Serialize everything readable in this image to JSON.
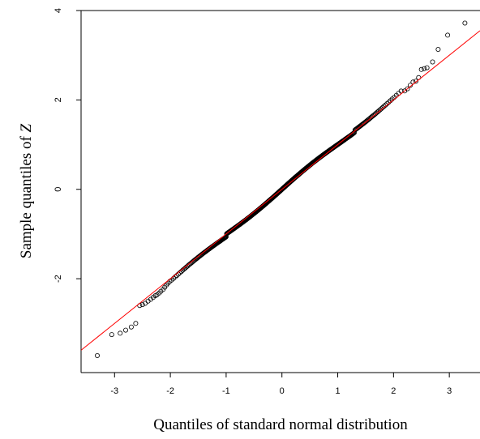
{
  "chart_data": {
    "type": "scatter",
    "title": "",
    "xlabel": "Quantiles of standard normal distribution",
    "ylabel_prefix": "Sample quantiles of ",
    "ylabel_symbol": "Z",
    "xlim": [
      -3.6,
      3.55
    ],
    "ylim": [
      -4.1,
      4.0
    ],
    "x_ticks": [
      -3,
      -2,
      -1,
      0,
      1,
      2,
      3
    ],
    "y_ticks": [
      -2,
      0,
      2,
      4
    ],
    "x_tick_labels": [
      "-3",
      "-2",
      "-1",
      "0",
      "1",
      "2",
      "3"
    ],
    "y_tick_labels": [
      "-2",
      "0",
      "2",
      "4"
    ],
    "grid": false,
    "legend": "none",
    "reference_line": {
      "slope": 1.0,
      "intercept": 0.0,
      "color": "#ff0000"
    },
    "point_color": "#000000",
    "series": [
      {
        "points": [
          [
            -3.31,
            -3.72
          ],
          [
            -3.05,
            -3.25
          ],
          [
            -2.9,
            -3.22
          ],
          [
            -2.8,
            -3.15
          ],
          [
            -2.7,
            -3.08
          ],
          [
            -2.62,
            -3.0
          ],
          [
            -2.55,
            -2.6
          ],
          [
            -2.5,
            -2.58
          ],
          [
            -2.45,
            -2.55
          ],
          [
            -2.4,
            -2.5
          ],
          [
            -2.35,
            -2.46
          ],
          [
            -2.31,
            -2.42
          ],
          [
            -2.27,
            -2.38
          ],
          [
            -2.24,
            -2.36
          ],
          [
            -2.2,
            -2.32
          ],
          [
            -2.17,
            -2.28
          ],
          [
            -2.13,
            -2.24
          ],
          [
            -2.1,
            -2.19
          ],
          [
            -2.07,
            -2.14
          ],
          [
            -2.04,
            -2.1
          ],
          [
            -2.01,
            -2.06
          ],
          [
            2.2,
            2.2
          ],
          [
            2.25,
            2.25
          ],
          [
            2.3,
            2.33
          ],
          [
            2.35,
            2.4
          ],
          [
            2.4,
            2.42
          ],
          [
            2.45,
            2.5
          ],
          [
            2.5,
            2.68
          ],
          [
            2.55,
            2.7
          ],
          [
            2.6,
            2.72
          ],
          [
            2.7,
            2.85
          ],
          [
            2.8,
            3.13
          ],
          [
            2.97,
            3.45
          ],
          [
            3.28,
            3.72
          ]
        ]
      }
    ]
  }
}
